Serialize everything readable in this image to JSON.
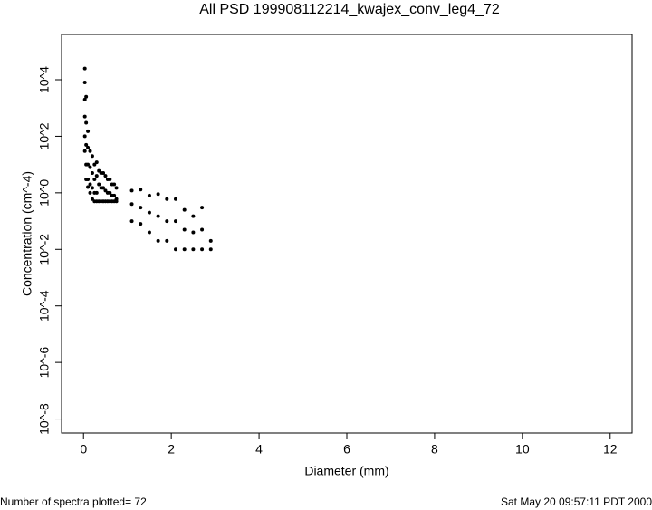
{
  "chart_data": {
    "type": "scatter",
    "title": "All PSD 199908112214_kwajex_conv_leg4_72",
    "xlabel": "Diameter (mm)",
    "ylabel": "Concentration (cm^-4)",
    "footer_left": "Number of spectra plotted= 72",
    "footer_right": "Sat May 20 09:57:11 PDT 2000",
    "xlim": [
      -0.5,
      12.5
    ],
    "xticks": [
      0,
      2,
      4,
      6,
      8,
      10,
      12
    ],
    "ylim": [
      3.2e-09,
      400000
    ],
    "yscale": "log",
    "yticks": [
      {
        "value": 1e-08,
        "label": "10^-8"
      },
      {
        "value": 1e-06,
        "label": "10^-6"
      },
      {
        "value": 0.0001,
        "label": "10^-4"
      },
      {
        "value": 0.01,
        "label": "10^-2"
      },
      {
        "value": 1,
        "label": "10^0"
      },
      {
        "value": 100,
        "label": "10^2"
      },
      {
        "value": 10000,
        "label": "10^4"
      }
    ],
    "series": [
      {
        "color": "#000000",
        "x": [
          0.03,
          0.03,
          0.03,
          0.03,
          0.03,
          0.03,
          0.06,
          0.06,
          0.06,
          0.06,
          0.06,
          0.1,
          0.1,
          0.1,
          0.1,
          0.1,
          0.15,
          0.15,
          0.15,
          0.15,
          0.2,
          0.2,
          0.2,
          0.2,
          0.25,
          0.25,
          0.25,
          0.25,
          0.3,
          0.3,
          0.3,
          0.3,
          0.35,
          0.35,
          0.35,
          0.4,
          0.4,
          0.4,
          0.45,
          0.45,
          0.45,
          0.5,
          0.5,
          0.5,
          0.55,
          0.55,
          0.55,
          0.6,
          0.6,
          0.6,
          0.65,
          0.65,
          0.65,
          0.7,
          0.7,
          0.7,
          0.75,
          0.75,
          0.75,
          1.1,
          1.1,
          1.1,
          1.3,
          1.3,
          1.3,
          1.5,
          1.5,
          1.5,
          1.7,
          1.7,
          1.7,
          1.9,
          1.9,
          1.9,
          2.1,
          2.1,
          2.1,
          2.3,
          2.3,
          2.3,
          2.5,
          2.5,
          2.5,
          2.7,
          2.7,
          2.7,
          2.9,
          2.9
        ],
        "values": [
          25000,
          8000,
          2000,
          500,
          100,
          30,
          2500,
          300,
          50,
          10,
          3,
          150,
          40,
          10,
          3,
          1.6,
          30,
          8,
          2,
          1,
          20,
          5,
          1.5,
          0.6,
          10,
          3,
          1,
          0.5,
          12,
          4,
          1,
          0.5,
          6,
          2,
          0.5,
          5,
          1.5,
          0.5,
          5,
          1.5,
          0.5,
          4,
          1.2,
          0.5,
          3,
          1,
          0.5,
          3,
          1,
          0.5,
          2,
          0.8,
          0.5,
          2,
          0.8,
          0.5,
          1.5,
          0.6,
          0.5,
          1.2,
          0.4,
          0.1,
          1.3,
          0.3,
          0.08,
          0.8,
          0.2,
          0.04,
          0.9,
          0.15,
          0.02,
          0.6,
          0.1,
          0.02,
          0.6,
          0.1,
          0.01,
          0.25,
          0.05,
          0.01,
          0.15,
          0.04,
          0.01,
          0.3,
          0.05,
          0.01,
          0.02,
          0.01
        ]
      }
    ]
  }
}
